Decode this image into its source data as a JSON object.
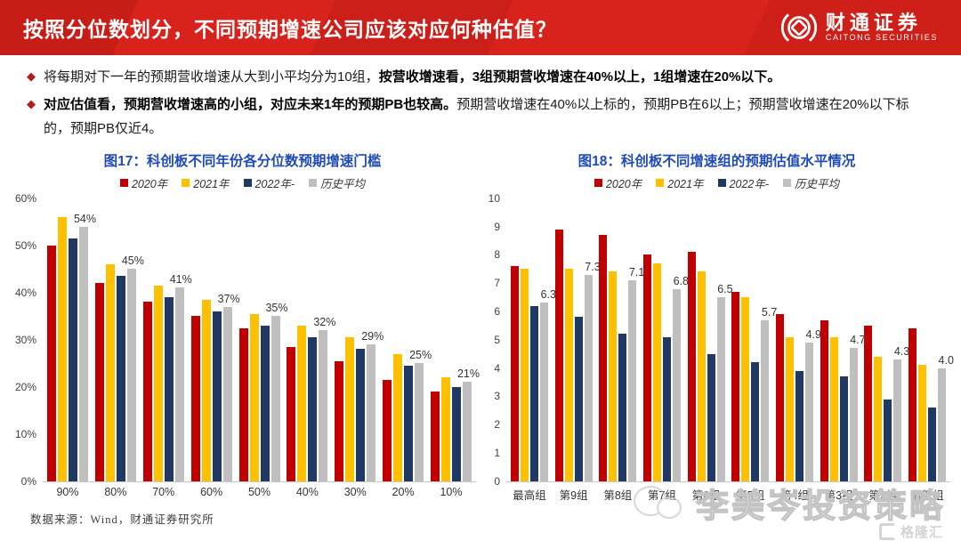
{
  "header": {
    "title": "按照分位数划分，不同预期增速公司应该对应何种估值？",
    "logo_text": "财通证券",
    "logo_subtext": "CAITONG SECURITIES"
  },
  "bullets": {
    "b1_normal": "将每期对下一年的预期营收增速从大到小平均分为10组，",
    "b1_bold": "按营收增速看，3组预期营收增速在40%以上，1组增速在20%以下。",
    "b2_bold": "对应估值看，预期营收增速高的小组，对应未来1年的预期PB也较高。",
    "b2_normal": "预期营收增速在40%以上标的，预期PB在6以上；预期营收增速在20%以下标的，预期PB仅近4。"
  },
  "colors": {
    "header_red": "#d8231c",
    "chart_title_blue": "#1f4bb8",
    "series_2020": "#c00000",
    "series_2021": "#ffc000",
    "series_2022": "#1f3864",
    "series_avg": "#bfbfbf"
  },
  "chart_data": [
    {
      "type": "bar",
      "title": "图17：科创板不同年份各分位数预期增速门槛",
      "categories": [
        "90%",
        "80%",
        "70%",
        "60%",
        "50%",
        "40%",
        "30%",
        "20%",
        "10%"
      ],
      "series": [
        {
          "name": "2020年",
          "color": "#c00000",
          "values": [
            50,
            42,
            38,
            35,
            32.5,
            28.5,
            25.5,
            21.5,
            19
          ]
        },
        {
          "name": "2021年",
          "color": "#ffc000",
          "values": [
            56,
            46,
            41.5,
            38.5,
            35.5,
            33,
            30.5,
            27,
            22
          ]
        },
        {
          "name": "2022年-",
          "color": "#1f3864",
          "values": [
            51.5,
            43.5,
            39,
            36,
            33,
            30.5,
            28,
            24.5,
            20
          ]
        },
        {
          "name": "历史平均",
          "color": "#bfbfbf",
          "values": [
            54,
            45,
            41,
            37,
            35,
            32,
            29,
            25,
            21
          ]
        }
      ],
      "labels": [
        "54%",
        "45%",
        "41%",
        "37%",
        "35%",
        "32%",
        "29%",
        "25%",
        "21%"
      ],
      "label_series": "历史平均",
      "ylim": [
        0,
        60
      ],
      "yticks": [
        "60%",
        "50%",
        "40%",
        "30%",
        "20%",
        "10%",
        "0%"
      ],
      "legend_position": "top",
      "grid": false,
      "xlabel": "",
      "ylabel": ""
    },
    {
      "type": "bar",
      "title": "图18：科创板不同增速组的预期估值水平情况",
      "categories": [
        "最高组",
        "第9组",
        "第8组",
        "第7组",
        "第6组",
        "第5组",
        "第4组",
        "第3组",
        "第2组",
        "最低组"
      ],
      "series": [
        {
          "name": "2020年",
          "color": "#c00000",
          "values": [
            7.6,
            8.9,
            8.7,
            8.0,
            8.1,
            6.7,
            5.9,
            5.7,
            5.5,
            5.4
          ]
        },
        {
          "name": "2021年",
          "color": "#ffc000",
          "values": [
            7.5,
            7.5,
            7.4,
            7.7,
            7.4,
            6.5,
            5.1,
            5.1,
            4.4,
            4.1
          ]
        },
        {
          "name": "2022年-",
          "color": "#1f3864",
          "values": [
            6.2,
            5.8,
            5.2,
            5.1,
            4.5,
            4.2,
            3.9,
            3.7,
            2.9,
            2.6
          ]
        },
        {
          "name": "历史平均",
          "color": "#bfbfbf",
          "values": [
            6.3,
            7.3,
            7.1,
            6.8,
            6.5,
            5.7,
            4.9,
            4.7,
            4.3,
            4.0
          ]
        }
      ],
      "labels": [
        "6.3",
        "7.3",
        "7.1",
        "6.8",
        "6.5",
        "5.7",
        "4.9",
        "4.7",
        "4.3",
        "4.0"
      ],
      "label_series": "历史平均",
      "ylim": [
        0,
        10
      ],
      "yticks": [
        "10",
        "9",
        "8",
        "7",
        "6",
        "5",
        "4",
        "3",
        "2",
        "1",
        "0"
      ],
      "legend_position": "top",
      "grid": false,
      "xlabel": "",
      "ylabel": ""
    }
  ],
  "footer": {
    "source": "数据来源：Wind，财通证券研究所"
  },
  "watermark": {
    "text": "李美岑投资策略",
    "brand": "格隆汇"
  }
}
